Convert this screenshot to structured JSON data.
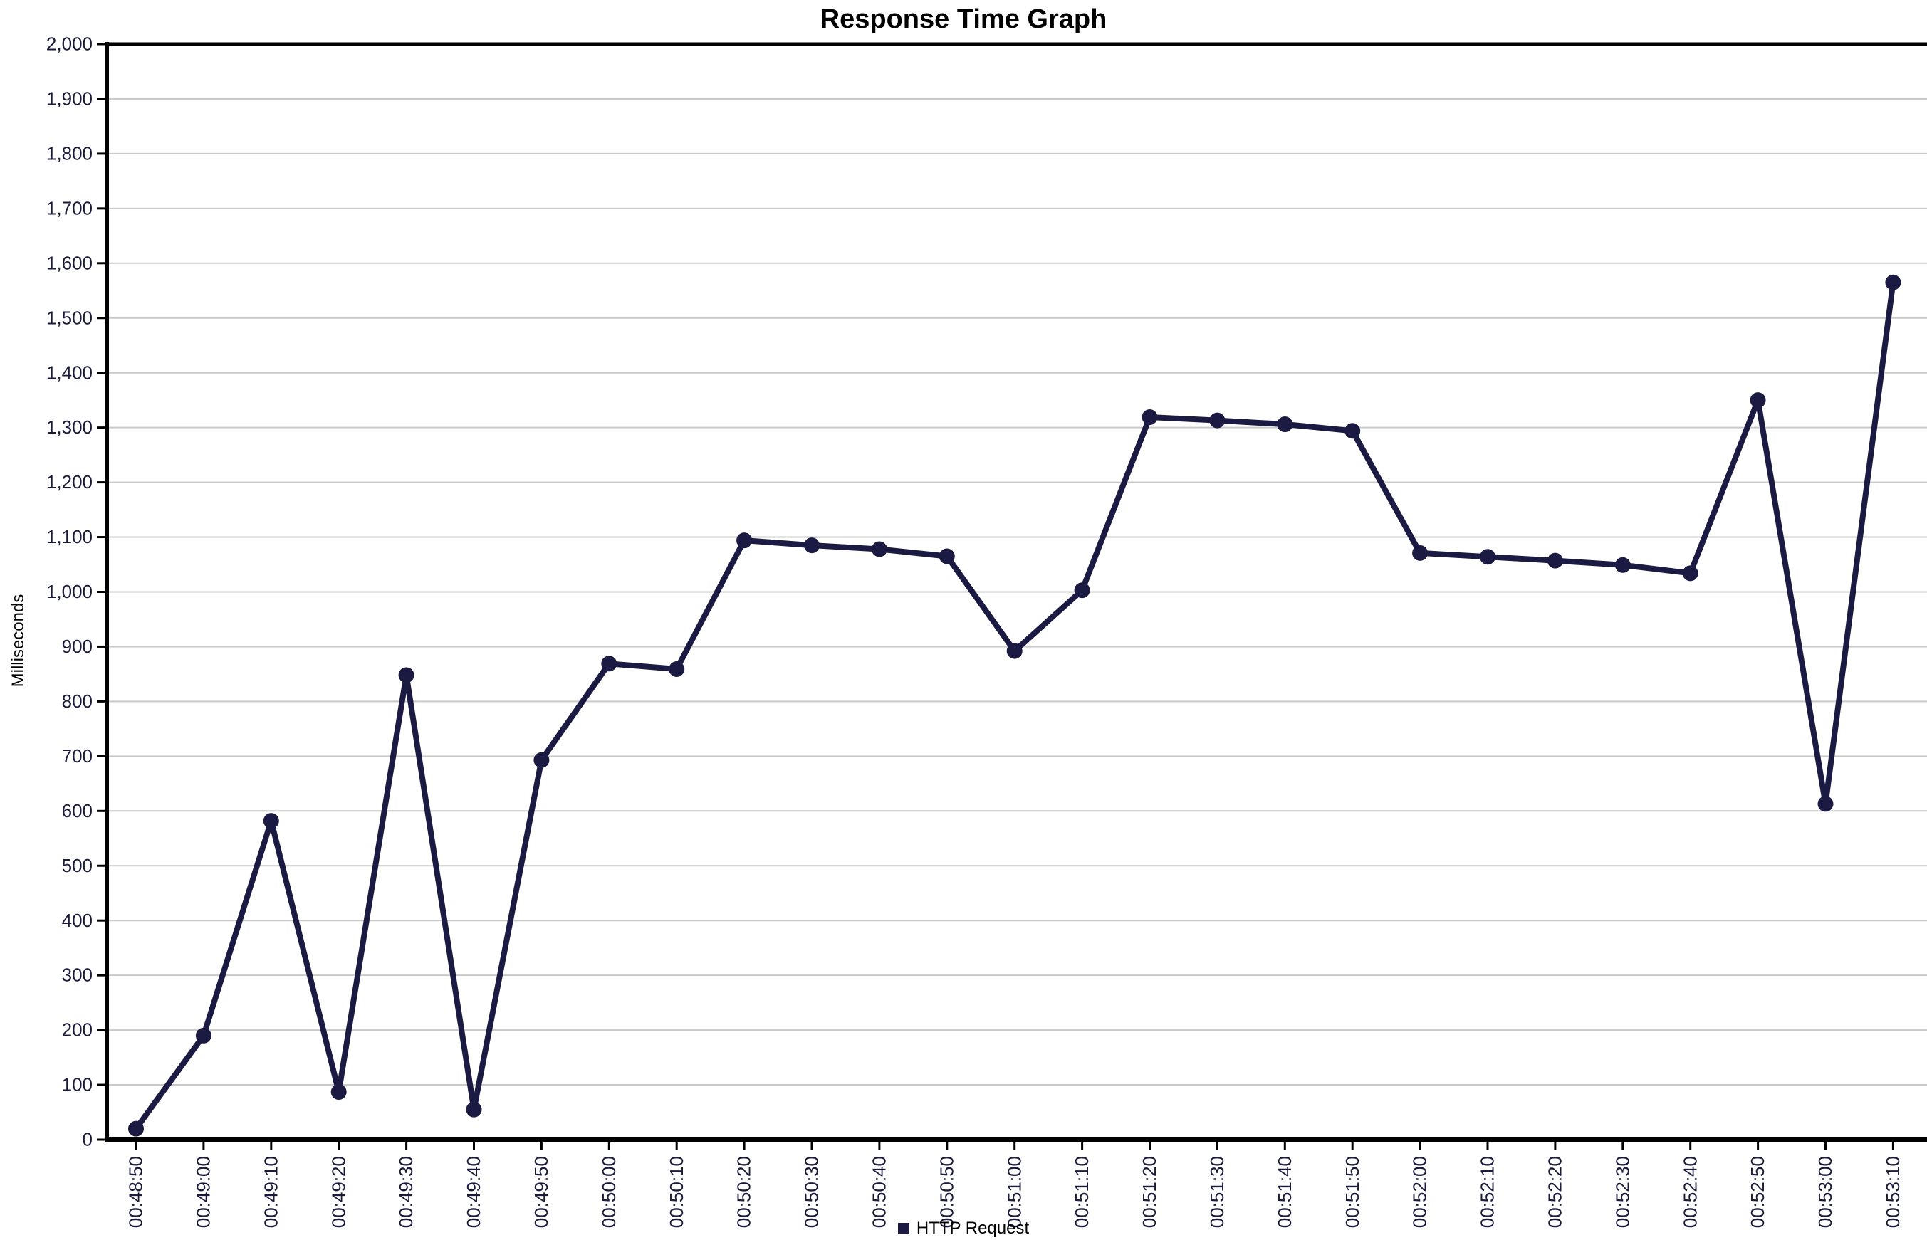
{
  "title": "Response Time Graph",
  "legend": {
    "items": [
      {
        "label": "HTTP Request",
        "color": "#1a1a42"
      }
    ]
  },
  "colors": {
    "series": "#1a1a42",
    "gridline": "#c9c9c9",
    "axis": "#000000",
    "tick_label": "#1a1a3c",
    "background": "#ffffff"
  },
  "chart_data": {
    "type": "line",
    "title": "Response Time Graph",
    "xlabel": "",
    "ylabel": "Milliseconds",
    "ylim": [
      0,
      2000
    ],
    "y_tick_step": 100,
    "grid": true,
    "legend_position": "bottom",
    "marker": "circle",
    "categories": [
      "00:48:50",
      "00:49:00",
      "00:49:10",
      "00:49:20",
      "00:49:30",
      "00:49:40",
      "00:49:50",
      "00:50:00",
      "00:50:10",
      "00:50:20",
      "00:50:30",
      "00:50:40",
      "00:50:50",
      "00:51:00",
      "00:51:10",
      "00:51:20",
      "00:51:30",
      "00:51:40",
      "00:51:50",
      "00:52:00",
      "00:52:10",
      "00:52:20",
      "00:52:30",
      "00:52:40",
      "00:52:50",
      "00:53:00",
      "00:53:10"
    ],
    "series": [
      {
        "name": "HTTP Request",
        "color": "#1a1a42",
        "values": [
          20,
          190,
          582,
          87,
          848,
          55,
          693,
          869,
          859,
          1094,
          1085,
          1078,
          1065,
          892,
          1003,
          1319,
          1313,
          1306,
          1294,
          1071,
          1064,
          1057,
          1049,
          1034,
          1350,
          613,
          1565
        ]
      }
    ]
  }
}
